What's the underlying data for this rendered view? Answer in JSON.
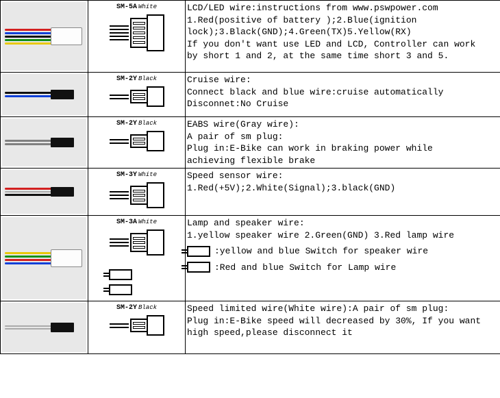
{
  "colors": {
    "red": "#d32020",
    "blue": "#1040d8",
    "black": "#101010",
    "green": "#109018",
    "yellow": "#e8c808",
    "white": "#f5f5f5",
    "gray": "#808080"
  },
  "rows": [
    {
      "id": "lcd-led",
      "heightClass": "row-h-100",
      "photoWires": [
        "red",
        "blue",
        "black",
        "green",
        "yellow"
      ],
      "photoConnector": "white-block",
      "diagram": {
        "code": "SM-5A",
        "color": "White",
        "pins": 5
      },
      "lines": [
        "LCD/LED wire:instructions from www.pswpower.com",
        "1.Red(positive of battery );2.Blue(ignition",
        "lock);3.Black(GND);4.Green(TX)5.Yellow(RX)",
        "If you don't want use LED and LCD, Controller can work",
        "by short 1 and 2, at the same time short 3 and 5."
      ]
    },
    {
      "id": "cruise",
      "heightClass": "row-h-60",
      "photoWires": [
        "black",
        "blue"
      ],
      "photoConnector": "black-small",
      "diagram": {
        "code": "SM-2Y",
        "color": "Black",
        "pins": 2
      },
      "lines": [
        "Cruise wire:",
        "Connect black and blue wire:cruise automatically",
        "Disconnet:No Cruise"
      ]
    },
    {
      "id": "eabs",
      "heightClass": "row-h-70",
      "photoWires": [
        "gray",
        "gray"
      ],
      "photoConnector": "black-small",
      "diagram": {
        "code": "SM-2Y",
        "color": "Black",
        "pins": 2
      },
      "lines": [
        "EABS wire(Gray wire):",
        "A pair of sm plug:",
        "Plug in:E-Bike can work in braking power while",
        "achieving flexible brake"
      ]
    },
    {
      "id": "speed-sensor",
      "heightClass": "row-h-64",
      "photoWires": [
        "red",
        "white",
        "black"
      ],
      "photoConnector": "black-small",
      "diagram": {
        "code": "SM-3Y",
        "color": "White",
        "pins": 3
      },
      "lines": [
        "Speed sensor wire:",
        "1.Red(+5V);2.White(Signal);3.black(GND)"
      ]
    },
    {
      "id": "lamp-speaker",
      "heightClass": "row-h-120",
      "photoWires": [
        "yellow",
        "green",
        "red",
        "blue"
      ],
      "photoConnector": "white-block",
      "diagram": {
        "code": "SM-3A",
        "color": "White",
        "pins": 3,
        "extraSwitches": true
      },
      "lines": [
        "Lamp and speaker wire:",
        "1.yellow speaker wire 2.Green(GND) 3.Red lamp wire"
      ],
      "switchLines": [
        ":yellow and blue Switch for speaker wire",
        ":Red and blue Switch for Lamp wire"
      ]
    },
    {
      "id": "speed-limited",
      "heightClass": "row-h-72",
      "photoWires": [
        "white",
        "white"
      ],
      "photoConnector": "black-small",
      "diagram": {
        "code": "SM-2Y",
        "color": "Black",
        "pins": 2
      },
      "lines": [
        "Speed limited wire(White wire):A pair of sm plug:",
        "Plug in:E-Bike speed will decreased by 30%, If you want",
        "high speed,please disconnect it"
      ]
    }
  ]
}
